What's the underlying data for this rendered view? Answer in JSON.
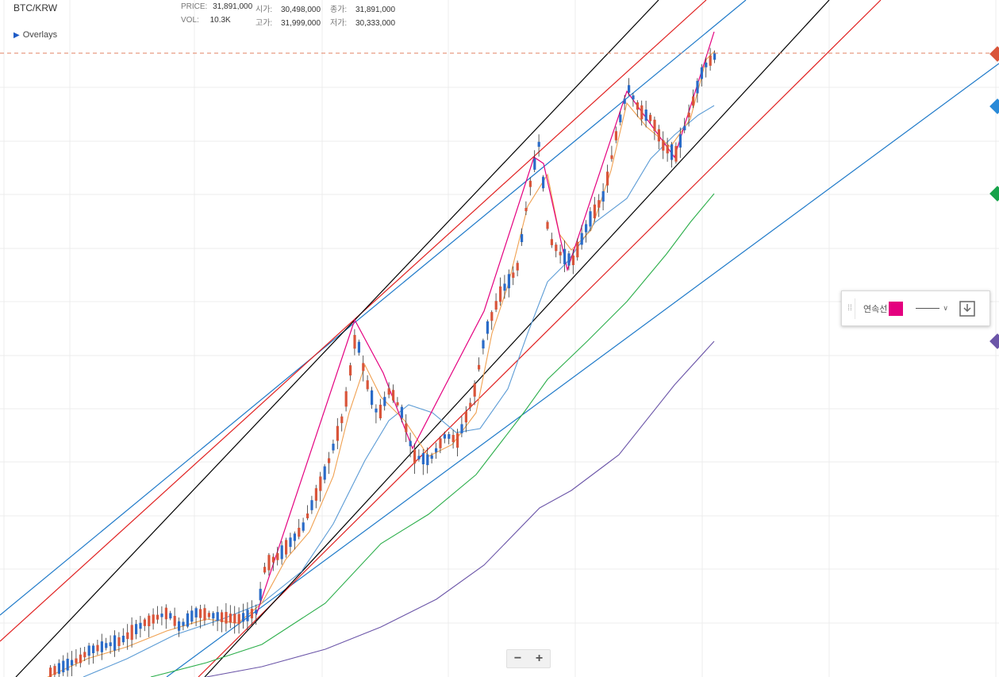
{
  "header": {
    "symbol": "BTC/KRW",
    "price_label": "PRICE:",
    "price_value": "31,891,000",
    "vol_label": "VOL:",
    "vol_value": "10.3K",
    "open_label": "시가:",
    "open_value": "30,498,000",
    "high_label": "고가:",
    "high_value": "31,999,000",
    "close_label": "종가:",
    "close_value": "31,891,000",
    "low_label": "저가:",
    "low_value": "30,333,000",
    "overlays_label": "Overlays"
  },
  "zoom": {
    "minus": "−",
    "plus": "+"
  },
  "tool_panel": {
    "label": "연속선",
    "swatch_color": "#e4007f",
    "grip_icon": "drag-handle-icon",
    "save_icon": "download-icon"
  },
  "colors": {
    "up": "#d9553a",
    "down": "#2a6bc8",
    "ma_fast": "#f0a050",
    "ma_mid": "#5b9bd5",
    "ma_slow": "#2bae4a",
    "ma_long": "#6b55a8",
    "trend_blue": "#1f7ac9",
    "trend_red": "#e02020",
    "trend_black": "#000000",
    "zigzag": "#e4007f",
    "price_line": "#e08060",
    "grid": "#ececec"
  },
  "right_markers": [
    {
      "name": "price-marker",
      "color": "#d9553a"
    },
    {
      "name": "blue-marker",
      "color": "#2a8ad8"
    },
    {
      "name": "green-marker",
      "color": "#17a34a"
    },
    {
      "name": "purple-marker",
      "color": "#6b55a8"
    }
  ],
  "chart_data": {
    "type": "candlestick",
    "symbol": "BTC/KRW",
    "last_price": 31891000,
    "ohlc_last": {
      "open": 30498000,
      "high": 31999000,
      "low": 30333000,
      "close": 31891000,
      "volume": "10.3K"
    },
    "overlays": [
      "moving-average-fast",
      "moving-average-mid",
      "moving-average-slow",
      "moving-average-long",
      "trend-channels",
      "zigzag-line"
    ],
    "grid": true,
    "axes_visible": false
  }
}
